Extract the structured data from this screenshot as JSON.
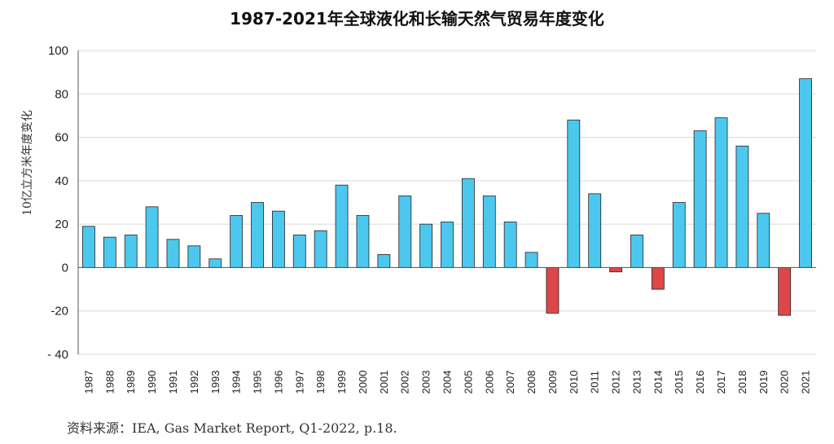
{
  "chart_data": {
    "type": "bar",
    "title": "1987-2021年全球液化和长输天然气贸易年度变化",
    "ylabel": "10亿立方米年度变化",
    "xlabel": "",
    "ylim": [
      -40,
      100
    ],
    "yticks": [
      -40,
      -20,
      0,
      20,
      40,
      60,
      80,
      100
    ],
    "yticks_labels": [
      "- 40",
      "-20",
      "0",
      "20",
      "40",
      "60",
      "80",
      "100"
    ],
    "grid": true,
    "categories": [
      "1987",
      "1988",
      "1989",
      "1990",
      "1991",
      "1992",
      "1993",
      "1994",
      "1995",
      "1996",
      "1997",
      "1998",
      "1999",
      "2000",
      "2001",
      "2002",
      "2003",
      "2004",
      "2005",
      "2006",
      "2007",
      "2008",
      "2009",
      "2010",
      "2011",
      "2012",
      "2013",
      "2014",
      "2015",
      "2016",
      "2017",
      "2018",
      "2019",
      "2020",
      "2021"
    ],
    "values": [
      19,
      14,
      15,
      28,
      13,
      10,
      4,
      24,
      30,
      26,
      15,
      17,
      38,
      24,
      6,
      33,
      20,
      21,
      41,
      33,
      21,
      7,
      -21,
      68,
      34,
      -2,
      15,
      -10,
      30,
      63,
      69,
      56,
      25,
      -22,
      87
    ],
    "colors": {
      "positive": "#4cc8ef",
      "negative": "#dd4748",
      "edge": "#222222"
    },
    "source": "资料来源：IEA, Gas Market Report, Q1-2022, p.18."
  }
}
